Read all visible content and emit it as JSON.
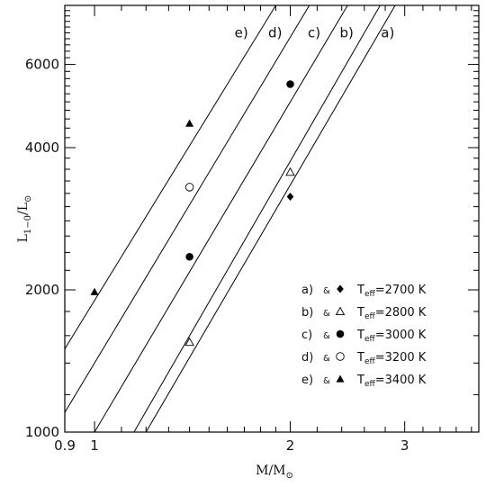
{
  "chart_data": {
    "type": "line",
    "title": "",
    "xlabel_main": "M/M",
    "xlabel_sub": "⊙",
    "ylabel_main": "L",
    "ylabel_sub1": "1−0",
    "ylabel_mid": "/L",
    "ylabel_sub2": "⊙",
    "x_scale": "log",
    "y_scale": "log",
    "xlim": [
      0.9,
      3.9
    ],
    "ylim": [
      1000,
      8000
    ],
    "x_ticks": [
      {
        "value": 0.9,
        "label": "0.9"
      },
      {
        "value": 1,
        "label": "1"
      },
      {
        "value": 2,
        "label": "2"
      },
      {
        "value": 3,
        "label": "3"
      }
    ],
    "x_minor_ticks": [
      1.1,
      1.2,
      1.3,
      1.4,
      1.5,
      1.6,
      1.7,
      1.8,
      1.9,
      2.2,
      2.4,
      2.6,
      2.8,
      3.2,
      3.4,
      3.6,
      3.8
    ],
    "y_ticks": [
      {
        "value": 1000,
        "label": "1000"
      },
      {
        "value": 2000,
        "label": "2000"
      },
      {
        "value": 4000,
        "label": "4000"
      },
      {
        "value": 6000,
        "label": "6000"
      }
    ],
    "y_minor_ticks": [
      1200,
      1400,
      1600,
      1800,
      2200,
      2400,
      2600,
      2800,
      3000,
      3200,
      3400,
      3600,
      3800,
      4200,
      4400,
      4600,
      4800,
      5000,
      5200,
      5400,
      5600,
      5800,
      6200,
      6400,
      6600,
      6800,
      7000,
      7200,
      7400,
      7600,
      7800
    ],
    "grid": false,
    "legend_position": "bottom-right",
    "series": [
      {
        "key": "a",
        "label": "a)",
        "marker": "diamond-filled",
        "teff_label": "T",
        "teff_sub": "eff",
        "teff_value": "=2700 K",
        "line": [
          [
            1.2,
            1000
          ],
          [
            2.9,
            8000
          ]
        ],
        "points": [
          {
            "x": 2.0,
            "y": 3150
          }
        ]
      },
      {
        "key": "b",
        "label": "b)",
        "marker": "triangle-open",
        "teff_label": "T",
        "teff_sub": "eff",
        "teff_value": "=2800 K",
        "line": [
          [
            1.15,
            1000
          ],
          [
            2.75,
            8000
          ]
        ],
        "points": [
          {
            "x": 1.4,
            "y": 1550
          },
          {
            "x": 2.0,
            "y": 3550
          }
        ]
      },
      {
        "key": "c",
        "label": "c)",
        "marker": "circle-filled",
        "teff_label": "T",
        "teff_sub": "eff",
        "teff_value": "=3000 K",
        "line": [
          [
            1.0,
            1000
          ],
          [
            2.45,
            8000
          ]
        ],
        "points": [
          {
            "x": 1.4,
            "y": 2350
          },
          {
            "x": 2.0,
            "y": 5450
          }
        ]
      },
      {
        "key": "d",
        "label": "d)",
        "marker": "circle-open",
        "teff_label": "T",
        "teff_sub": "eff",
        "teff_value": "=3200 K",
        "line": [
          [
            0.9,
            1100
          ],
          [
            2.14,
            8000
          ]
        ],
        "points": [
          {
            "x": 1.4,
            "y": 3300
          }
        ]
      },
      {
        "key": "e",
        "label": "e)",
        "marker": "triangle-filled",
        "teff_label": "T",
        "teff_sub": "eff",
        "teff_value": "=3400 K",
        "line": [
          [
            0.9,
            1500
          ],
          [
            1.9,
            8000
          ]
        ],
        "points": [
          {
            "x": 1.0,
            "y": 1980
          },
          {
            "x": 1.4,
            "y": 4500
          }
        ]
      }
    ],
    "line_label_order": [
      "e",
      "d",
      "c",
      "b",
      "a"
    ],
    "legend_amp": "&"
  }
}
